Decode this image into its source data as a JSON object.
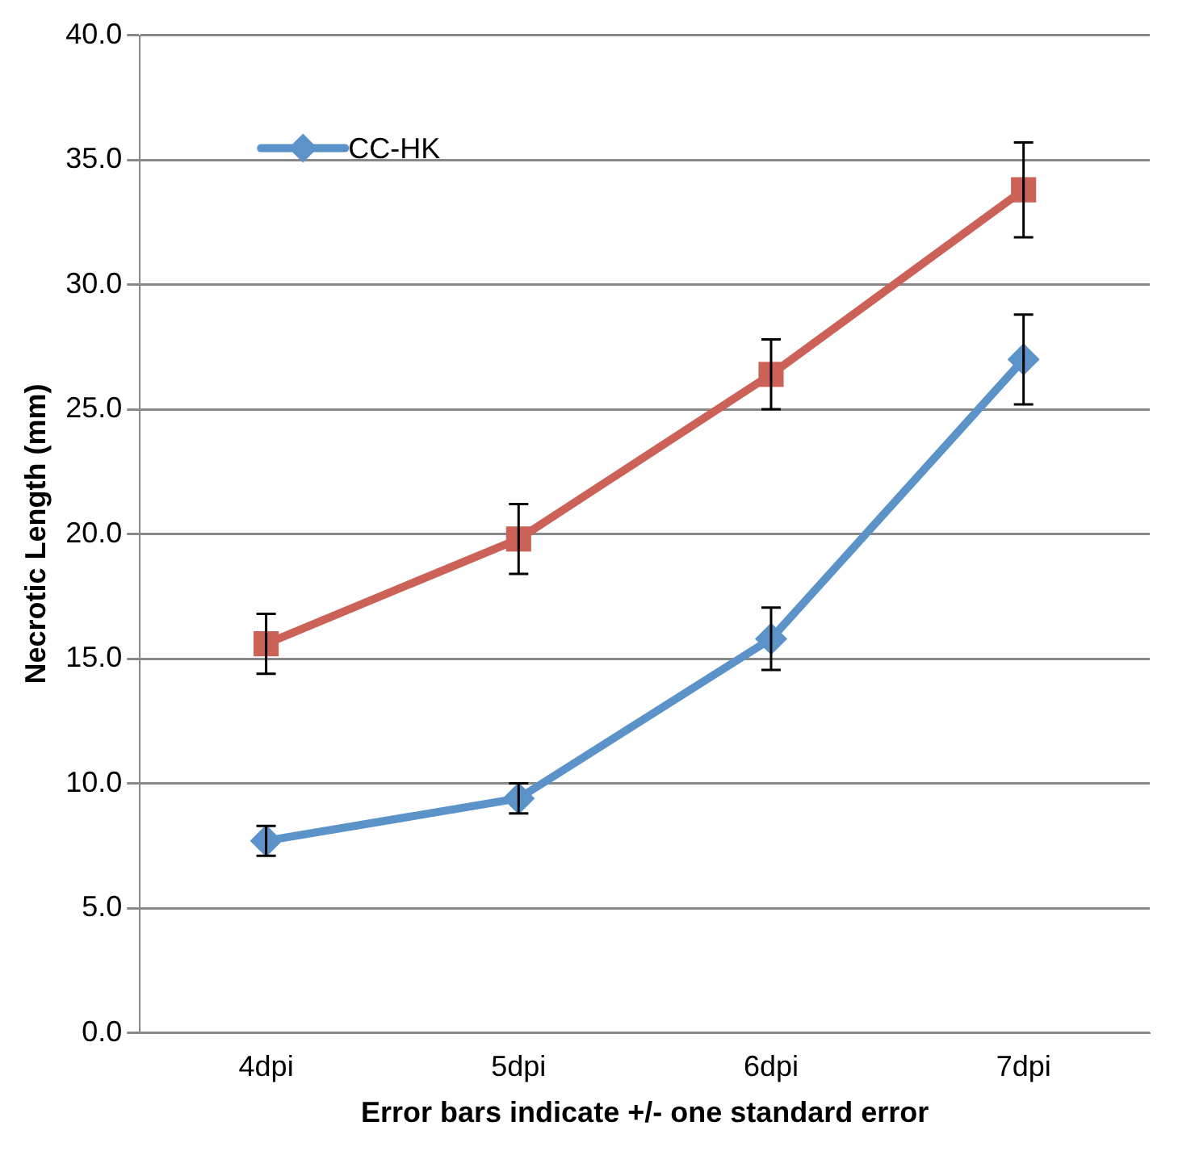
{
  "chart_data": {
    "type": "line",
    "xlabel": "Error bars indicate +/- one standard error",
    "ylabel": "Necrotic Length (mm)",
    "categories": [
      "4dpi",
      "5dpi",
      "6dpi",
      "7dpi"
    ],
    "series": [
      {
        "name": "CC-HK",
        "color": "#5b93c9",
        "marker": "diamond",
        "values": [
          7.7,
          9.4,
          15.8,
          27.0
        ],
        "errors": [
          0.6,
          0.6,
          1.25,
          1.8
        ]
      },
      {
        "color": "#cc6157",
        "marker": "square",
        "values": [
          15.6,
          19.8,
          26.4,
          33.8
        ],
        "errors": [
          1.2,
          1.4,
          1.4,
          1.9
        ]
      }
    ],
    "ylim": [
      0,
      40
    ],
    "yticks": [
      {
        "value": 0,
        "label": "0.0"
      },
      {
        "value": 5,
        "label": "5.0"
      },
      {
        "value": 10,
        "label": "10.0"
      },
      {
        "value": 15,
        "label": "15.0"
      },
      {
        "value": 20,
        "label": "20.0"
      },
      {
        "value": 25,
        "label": "25.0"
      },
      {
        "value": 30,
        "label": "30.0"
      },
      {
        "value": 35,
        "label": "35.0"
      },
      {
        "value": 40,
        "label": "40.0"
      }
    ],
    "grid": "y",
    "legend": "top left",
    "line_style": "solid"
  }
}
